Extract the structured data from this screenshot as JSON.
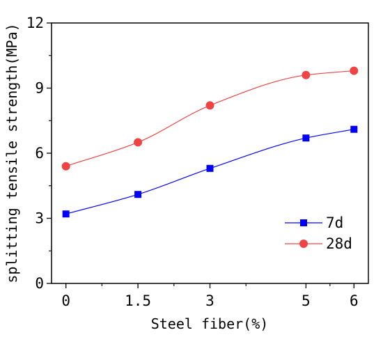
{
  "chart_data": {
    "type": "line",
    "xlabel": "Steel fiber(%)",
    "ylabel": "splitting tensile strength(MPa)",
    "xlim": [
      -0.3,
      6.3
    ],
    "ylim": [
      0,
      12
    ],
    "x_ticks": [
      0,
      1.5,
      3,
      5,
      6
    ],
    "x_tick_labels": [
      "0",
      "1.5",
      "3",
      "5",
      "6"
    ],
    "x_minor_ticks": [
      0.75,
      2.25,
      3.75,
      5.5
    ],
    "y_ticks": [
      0,
      3,
      6,
      9,
      12
    ],
    "y_tick_labels": [
      "0",
      "3",
      "6",
      "9",
      "12"
    ],
    "y_minor_ticks": [
      1.5,
      4.5,
      7.5,
      10.5
    ],
    "grid": false,
    "legend_position": "bottom-right",
    "series": [
      {
        "name": "7d",
        "marker": "square",
        "color": "#0000ff",
        "x": [
          0,
          1.5,
          3,
          5,
          6
        ],
        "values": [
          3.2,
          4.1,
          5.3,
          6.7,
          7.1
        ]
      },
      {
        "name": "28d",
        "marker": "circle",
        "color": "#ee4444",
        "x": [
          0,
          1.5,
          3,
          5,
          6
        ],
        "values": [
          5.4,
          6.5,
          8.2,
          9.6,
          9.8
        ]
      }
    ]
  }
}
